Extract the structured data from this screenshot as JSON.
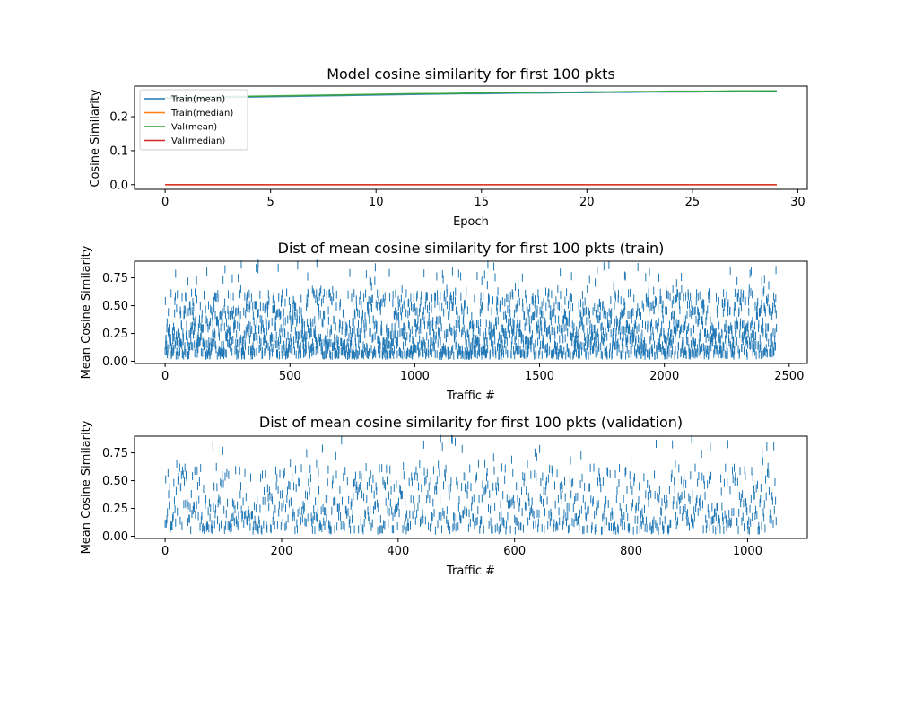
{
  "chart_data": [
    {
      "type": "line",
      "title": "Model cosine similarity for first 100 pkts",
      "xlabel": "Epoch",
      "ylabel": "Cosine Similarity",
      "xlim": [
        -1.45,
        30.45
      ],
      "ylim": [
        -0.0138,
        0.29
      ],
      "xticks": [
        0,
        5,
        10,
        15,
        20,
        25,
        30
      ],
      "xtick_labels": [
        "0",
        "5",
        "10",
        "15",
        "20",
        "25",
        "30"
      ],
      "yticks": [
        0.0,
        0.1,
        0.2
      ],
      "ytick_labels": [
        "0.0",
        "0.1",
        "0.2"
      ],
      "legend_position": "upper-left",
      "x": [
        0,
        1,
        2,
        3,
        4,
        5,
        6,
        7,
        8,
        9,
        10,
        11,
        12,
        13,
        14,
        15,
        16,
        17,
        18,
        19,
        20,
        21,
        22,
        23,
        24,
        25,
        26,
        27,
        28,
        29
      ],
      "series": [
        {
          "name": "Train(mean)",
          "color": "#1f77b4",
          "values": [
            0.254,
            0.255,
            0.256,
            0.257,
            0.258,
            0.259,
            0.26,
            0.261,
            0.262,
            0.263,
            0.264,
            0.265,
            0.266,
            0.267,
            0.268,
            0.268,
            0.269,
            0.27,
            0.27,
            0.271,
            0.271,
            0.272,
            0.272,
            0.273,
            0.273,
            0.273,
            0.274,
            0.274,
            0.274,
            0.275
          ]
        },
        {
          "name": "Train(median)",
          "color": "#ff7f0e",
          "values": [
            0.0,
            0.0,
            0.0,
            0.0,
            0.0,
            0.0,
            0.0,
            0.0,
            0.0,
            0.0,
            0.0,
            0.0,
            0.0,
            0.0,
            0.0,
            0.0,
            0.0,
            0.0,
            0.0,
            0.0,
            0.0,
            0.0,
            0.0,
            0.0,
            0.0,
            0.0,
            0.0,
            0.0,
            0.0,
            0.0
          ]
        },
        {
          "name": "Val(mean)",
          "color": "#2ca02c",
          "values": [
            0.256,
            0.257,
            0.258,
            0.259,
            0.26,
            0.261,
            0.262,
            0.263,
            0.264,
            0.265,
            0.266,
            0.267,
            0.268,
            0.268,
            0.269,
            0.27,
            0.271,
            0.271,
            0.272,
            0.272,
            0.273,
            0.273,
            0.274,
            0.274,
            0.275,
            0.275,
            0.275,
            0.276,
            0.276,
            0.276
          ]
        },
        {
          "name": "Val(median)",
          "color": "#d62728",
          "values": [
            0.0,
            0.0,
            0.0,
            0.0,
            0.0,
            0.0,
            0.0,
            0.0,
            0.0,
            0.0,
            0.0,
            0.0,
            0.0,
            0.0,
            0.0,
            0.0,
            0.0,
            0.0,
            0.0,
            0.0,
            0.0,
            0.0,
            0.0,
            0.0,
            0.0,
            0.0,
            0.0,
            0.0,
            0.0,
            0.0
          ]
        }
      ]
    },
    {
      "type": "scatter",
      "marker": "vline",
      "color": "#1f77b4",
      "title": "Dist of mean cosine similarity for first 100 pkts (train)",
      "xlabel": "Traffic #",
      "ylabel": "Mean Cosine Similarity",
      "xlim": [
        -122.5,
        2572.5
      ],
      "ylim": [
        -0.02,
        0.9
      ],
      "xticks": [
        0,
        500,
        1000,
        1500,
        2000,
        2500
      ],
      "xtick_labels": [
        "0",
        "500",
        "1000",
        "1500",
        "2000",
        "2500"
      ],
      "yticks": [
        0.0,
        0.25,
        0.5,
        0.75
      ],
      "ytick_labels": [
        "0.00",
        "0.25",
        "0.50",
        "0.75"
      ],
      "n_points": 2450,
      "y_range": [
        0.0,
        0.88
      ],
      "note": "points too dense to transcribe individually; most values 0.05-0.40, many 0.40-0.62, sparse up to 0.88"
    },
    {
      "type": "scatter",
      "marker": "vline",
      "color": "#1f77b4",
      "title": "Dist of mean cosine similarity for first 100 pkts (validation)",
      "xlabel": "Traffic #",
      "ylabel": "Mean Cosine Similarity",
      "xlim": [
        -52.5,
        1102.5
      ],
      "ylim": [
        -0.02,
        0.9
      ],
      "xticks": [
        0,
        200,
        400,
        600,
        800,
        1000
      ],
      "xtick_labels": [
        "0",
        "200",
        "400",
        "600",
        "800",
        "1000"
      ],
      "yticks": [
        0.0,
        0.25,
        0.5,
        0.75
      ],
      "ytick_labels": [
        "0.00",
        "0.25",
        "0.50",
        "0.75"
      ],
      "n_points": 1050,
      "y_range": [
        0.0,
        0.88
      ],
      "note": "points too dense to transcribe individually; most values 0.05-0.40, many 0.40-0.62, sparse up to 0.88"
    }
  ]
}
